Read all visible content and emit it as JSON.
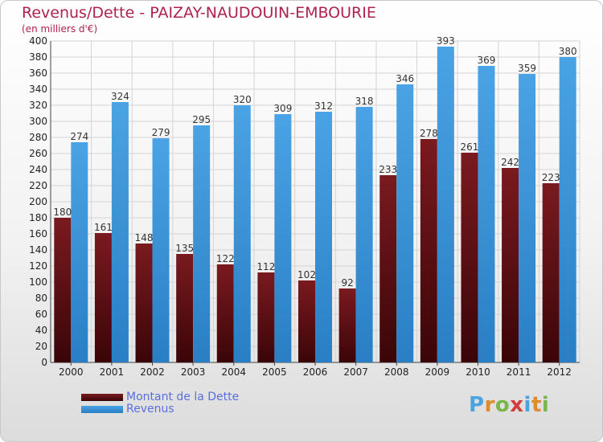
{
  "title": "Revenus/Dette - PAIZAY-NAUDOUIN-EMBOURIE",
  "subtitle": "(en milliers d'€)",
  "colors": {
    "dette": "#7a1a1f",
    "revenus": "#4aa3e4"
  },
  "legend": {
    "dette_label": "Montant de la Dette",
    "revenus_label": "Revenus"
  },
  "logo_text": "Proxiti",
  "chart_data": {
    "type": "bar",
    "title": "Revenus/Dette - PAIZAY-NAUDOUIN-EMBOURIE",
    "subtitle": "(en milliers d'€)",
    "categories": [
      "2000",
      "2001",
      "2002",
      "2003",
      "2004",
      "2005",
      "2006",
      "2007",
      "2008",
      "2009",
      "2010",
      "2011",
      "2012"
    ],
    "series": [
      {
        "name": "Montant de la Dette",
        "values": [
          180,
          161,
          148,
          135,
          122,
          112,
          102,
          92,
          233,
          278,
          261,
          242,
          223
        ]
      },
      {
        "name": "Revenus",
        "values": [
          274,
          324,
          279,
          295,
          320,
          309,
          312,
          318,
          346,
          393,
          369,
          359,
          380
        ]
      }
    ],
    "ylim": [
      0,
      400
    ],
    "yticks": [
      0,
      20,
      40,
      60,
      80,
      100,
      120,
      140,
      160,
      180,
      200,
      220,
      240,
      260,
      280,
      300,
      320,
      340,
      360,
      380,
      400
    ],
    "grid": true,
    "legend_position": "bottom-left"
  }
}
